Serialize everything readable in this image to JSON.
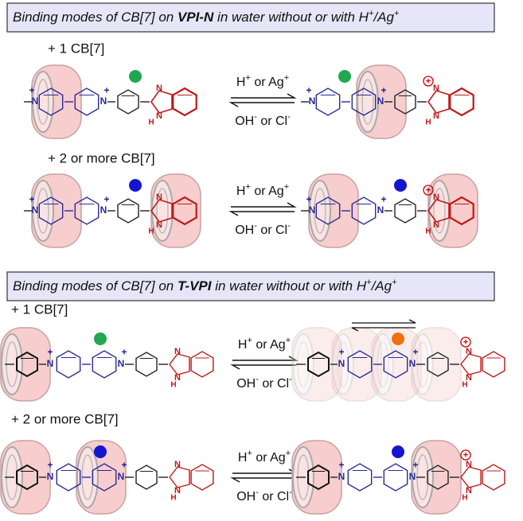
{
  "sections": [
    {
      "header": [
        "Binding modes of CB[7] on ",
        "VPI-N",
        " in water without or with H",
        "+",
        "/Ag",
        "+"
      ],
      "rows": [
        {
          "label": "+ 1 CB[7]",
          "forward": [
            "H",
            "+",
            " or Ag",
            "+"
          ],
          "reverse": [
            "OH",
            "-",
            " or Cl",
            "-"
          ]
        },
        {
          "label": "+ 2 or more CB[7]",
          "forward": [
            "H",
            "+",
            " or Ag",
            "+"
          ],
          "reverse": [
            "OH",
            "-",
            " or Cl",
            "-"
          ]
        }
      ]
    },
    {
      "header": [
        "Binding modes of CB[7] on ",
        "T-VPI",
        " in water without or with H",
        "+",
        "/Ag",
        "+"
      ],
      "rows": [
        {
          "label": "+ 1 CB[7]",
          "forward": [
            "H",
            "+",
            " or Ag",
            "+"
          ],
          "reverse": [
            "OH",
            "-",
            " or Cl",
            "-"
          ]
        },
        {
          "label": "+ 2 or more CB[7]",
          "forward": [
            "H",
            "+",
            " or Ag",
            "+"
          ],
          "reverse": [
            "OH",
            "-",
            " or Cl",
            "-"
          ]
        }
      ]
    }
  ],
  "atom_symbols": {
    "nitrogen": "N",
    "hydrogen": "H",
    "charge": "+"
  }
}
